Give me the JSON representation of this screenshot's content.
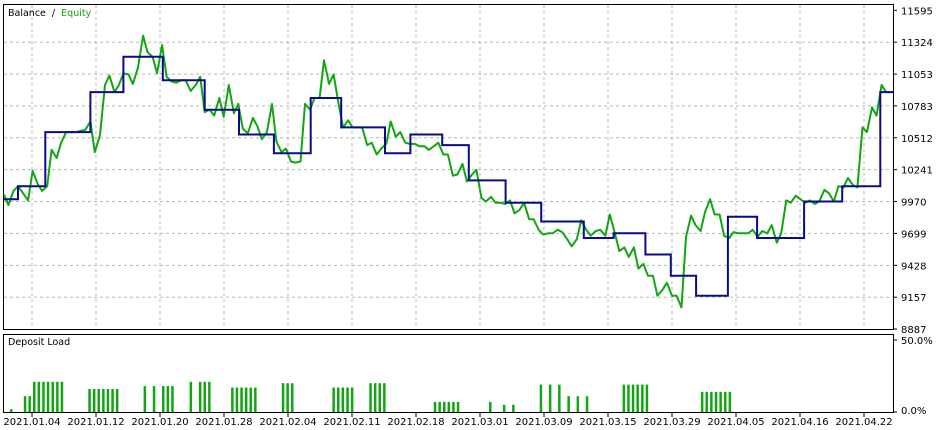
{
  "chart_data": [
    {
      "type": "line",
      "legend": {
        "items": [
          "Balance",
          "Equity"
        ],
        "separator": "/",
        "placement": "top-left"
      },
      "ylim": [
        8887,
        11640
      ],
      "y_ticks": [
        11595,
        11324,
        11053,
        10783,
        10512,
        10241,
        9970,
        9699,
        9428,
        9157,
        8887
      ],
      "grid": true,
      "colors": {
        "balance": "#0a0a8c",
        "equity": "#11a611",
        "grid": "#b8b8b8",
        "frame": "#000000"
      },
      "series": [
        {
          "name": "Balance",
          "steps": [
            [
              0.0,
              9990
            ],
            [
              2.2,
              10100
            ],
            [
              6.5,
              10560
            ],
            [
              13.6,
              10900
            ],
            [
              18.8,
              11200
            ],
            [
              25.0,
              11000
            ],
            [
              31.6,
              10750
            ],
            [
              37.0,
              10540
            ],
            [
              42.5,
              10380
            ],
            [
              48.3,
              10850
            ],
            [
              53.1,
              10600
            ],
            [
              60.0,
              10380
            ],
            [
              64.0,
              10540
            ],
            [
              69.0,
              10450
            ],
            [
              73.2,
              10150
            ],
            [
              79.0,
              9960
            ],
            [
              84.6,
              9800
            ],
            [
              91.3,
              9660
            ],
            [
              96.0,
              9700
            ],
            [
              101.0,
              9520
            ],
            [
              105.0,
              9340
            ],
            [
              109.0,
              9170
            ],
            [
              114.0,
              9840
            ],
            [
              118.6,
              9660
            ],
            [
              126.0,
              9970
            ],
            [
              132.0,
              10100
            ],
            [
              138.0,
              10900
            ],
            [
              140.0,
              10900
            ]
          ]
        },
        {
          "name": "Equity",
          "points": [
            [
              0,
              10030
            ],
            [
              0.7,
              9940
            ],
            [
              1.5,
              10060
            ],
            [
              2.2,
              10100
            ],
            [
              3,
              10040
            ],
            [
              3.8,
              9980
            ],
            [
              4.5,
              10230
            ],
            [
              5.3,
              10120
            ],
            [
              6,
              10060
            ],
            [
              6.8,
              10100
            ],
            [
              7.5,
              10410
            ],
            [
              8.3,
              10340
            ],
            [
              9,
              10470
            ],
            [
              9.8,
              10560
            ],
            [
              10.6,
              10560
            ],
            [
              11.3,
              10560
            ],
            [
              12.1,
              10570
            ],
            [
              12.8,
              10580
            ],
            [
              13.6,
              10650
            ],
            [
              14.3,
              10390
            ],
            [
              15.1,
              10530
            ],
            [
              15.9,
              10960
            ],
            [
              16.6,
              11040
            ],
            [
              17.4,
              10900
            ],
            [
              18.1,
              10960
            ],
            [
              18.8,
              11060
            ],
            [
              19.6,
              11050
            ],
            [
              20.3,
              10970
            ],
            [
              21.1,
              11110
            ],
            [
              21.9,
              11380
            ],
            [
              22.6,
              11240
            ],
            [
              23.4,
              11200
            ],
            [
              24.1,
              11060
            ],
            [
              24.9,
              11300
            ],
            [
              25.6,
              11030
            ],
            [
              26.4,
              10990
            ],
            [
              27.1,
              10980
            ],
            [
              27.9,
              11000
            ],
            [
              28.6,
              11000
            ],
            [
              29.4,
              10910
            ],
            [
              30.2,
              10960
            ],
            [
              30.9,
              11030
            ],
            [
              31.6,
              10730
            ],
            [
              32.4,
              10750
            ],
            [
              33.1,
              10700
            ],
            [
              33.9,
              10850
            ],
            [
              34.6,
              10690
            ],
            [
              35.4,
              10960
            ],
            [
              36.2,
              10720
            ],
            [
              36.9,
              10800
            ],
            [
              37.6,
              10590
            ],
            [
              38.4,
              10550
            ],
            [
              39.2,
              10680
            ],
            [
              39.9,
              10610
            ],
            [
              40.6,
              10500
            ],
            [
              41.4,
              10560
            ],
            [
              42.2,
              10800
            ],
            [
              42.9,
              10480
            ],
            [
              43.7,
              10390
            ],
            [
              44.4,
              10420
            ],
            [
              45.2,
              10310
            ],
            [
              45.9,
              10300
            ],
            [
              46.7,
              10310
            ],
            [
              47.4,
              10800
            ],
            [
              48.2,
              10750
            ],
            [
              48.9,
              10850
            ],
            [
              49.7,
              10850
            ],
            [
              50.4,
              11170
            ],
            [
              51.2,
              10970
            ],
            [
              51.9,
              11050
            ],
            [
              52.7,
              10800
            ],
            [
              53.4,
              10600
            ],
            [
              54.2,
              10660
            ],
            [
              54.9,
              10600
            ],
            [
              55.7,
              10600
            ],
            [
              56.4,
              10600
            ],
            [
              57.2,
              10450
            ],
            [
              57.9,
              10470
            ],
            [
              58.7,
              10370
            ],
            [
              59.4,
              10420
            ],
            [
              60.2,
              10460
            ],
            [
              60.9,
              10650
            ],
            [
              61.7,
              10520
            ],
            [
              62.4,
              10560
            ],
            [
              63.2,
              10470
            ],
            [
              63.9,
              10460
            ],
            [
              64.7,
              10460
            ],
            [
              65.4,
              10440
            ],
            [
              66.2,
              10440
            ],
            [
              66.9,
              10410
            ],
            [
              67.7,
              10440
            ],
            [
              68.4,
              10470
            ],
            [
              69.2,
              10370
            ],
            [
              69.9,
              10370
            ],
            [
              70.7,
              10190
            ],
            [
              71.4,
              10200
            ],
            [
              72.2,
              10290
            ],
            [
              72.9,
              10140
            ],
            [
              73.7,
              10200
            ],
            [
              74.4,
              10240
            ],
            [
              75.2,
              10000
            ],
            [
              75.9,
              9970
            ],
            [
              76.7,
              10010
            ],
            [
              77.4,
              9960
            ],
            [
              78.2,
              9960
            ],
            [
              78.9,
              9950
            ],
            [
              79.7,
              9980
            ],
            [
              80.4,
              9870
            ],
            [
              81.2,
              9900
            ],
            [
              81.9,
              9960
            ],
            [
              82.7,
              9820
            ],
            [
              83.4,
              9820
            ],
            [
              84.2,
              9730
            ],
            [
              84.9,
              9690
            ],
            [
              85.7,
              9700
            ],
            [
              86.4,
              9700
            ],
            [
              87.2,
              9730
            ],
            [
              87.9,
              9710
            ],
            [
              88.7,
              9650
            ],
            [
              89.4,
              9590
            ],
            [
              90.2,
              9650
            ],
            [
              90.9,
              9810
            ],
            [
              91.7,
              9730
            ],
            [
              92.4,
              9680
            ],
            [
              93.2,
              9720
            ],
            [
              93.9,
              9730
            ],
            [
              94.7,
              9680
            ],
            [
              95.4,
              9860
            ],
            [
              96.2,
              9700
            ],
            [
              96.9,
              9550
            ],
            [
              97.7,
              9580
            ],
            [
              98.4,
              9500
            ],
            [
              99.2,
              9580
            ],
            [
              99.9,
              9400
            ],
            [
              100.7,
              9440
            ],
            [
              101.4,
              9340
            ],
            [
              102.2,
              9340
            ],
            [
              102.9,
              9170
            ],
            [
              103.7,
              9220
            ],
            [
              104.4,
              9280
            ],
            [
              105.2,
              9170
            ],
            [
              105.9,
              9170
            ],
            [
              106.7,
              9070
            ],
            [
              107.4,
              9670
            ],
            [
              108.2,
              9850
            ],
            [
              108.9,
              9770
            ],
            [
              109.7,
              9720
            ],
            [
              110.4,
              9880
            ],
            [
              111.2,
              9990
            ],
            [
              111.9,
              9860
            ],
            [
              112.7,
              9860
            ],
            [
              113.4,
              9680
            ],
            [
              114.2,
              9660
            ],
            [
              114.9,
              9710
            ],
            [
              115.7,
              9700
            ],
            [
              116.4,
              9700
            ],
            [
              117.2,
              9700
            ],
            [
              117.9,
              9730
            ],
            [
              118.7,
              9670
            ],
            [
              119.4,
              9720
            ],
            [
              120.2,
              9700
            ],
            [
              120.9,
              9770
            ],
            [
              121.7,
              9620
            ],
            [
              122.4,
              9700
            ],
            [
              123.2,
              9980
            ],
            [
              123.9,
              9960
            ],
            [
              124.7,
              10020
            ],
            [
              125.4,
              9990
            ],
            [
              126.2,
              9960
            ],
            [
              126.9,
              9980
            ],
            [
              127.7,
              9950
            ],
            [
              128.4,
              9970
            ],
            [
              129.2,
              10070
            ],
            [
              129.9,
              10040
            ],
            [
              130.7,
              9970
            ],
            [
              131.4,
              10100
            ],
            [
              132.2,
              10090
            ],
            [
              132.9,
              10170
            ],
            [
              133.7,
              10110
            ],
            [
              134.4,
              10090
            ],
            [
              135.2,
              10600
            ],
            [
              135.9,
              10560
            ],
            [
              136.7,
              10770
            ],
            [
              137.4,
              10700
            ],
            [
              138.2,
              10960
            ],
            [
              138.9,
              10900
            ],
            [
              139.6,
              10900
            ]
          ]
        }
      ]
    },
    {
      "type": "bar",
      "title": "Deposit Load",
      "ylim": [
        0,
        50
      ],
      "y_ticks": [
        "50.0%",
        "0.0%"
      ],
      "x_ticks": [
        "2021.01.04",
        "2021.01.12",
        "2021.01.20",
        "2021.01.28",
        "2021.02.04",
        "2021.02.11",
        "2021.02.18",
        "2021.03.01",
        "2021.03.09",
        "2021.03.15",
        "2021.03.29",
        "2021.04.05",
        "2021.04.16",
        "2021.04.22"
      ],
      "values": [
        2,
        0,
        0,
        11,
        11,
        21,
        21,
        21,
        21,
        21,
        21,
        21,
        0,
        0,
        0,
        0,
        0,
        16,
        16,
        16,
        16,
        16,
        16,
        16,
        0,
        0,
        0,
        0,
        0,
        18,
        0,
        18,
        0,
        18,
        18,
        18,
        0,
        0,
        0,
        21,
        0,
        21,
        21,
        21,
        0,
        0,
        0,
        0,
        17,
        17,
        17,
        17,
        17,
        17,
        0,
        0,
        0,
        0,
        0,
        20,
        20,
        20,
        0,
        0,
        0,
        0,
        0,
        0,
        0,
        0,
        17,
        17,
        17,
        17,
        17,
        0,
        0,
        0,
        20,
        20,
        20,
        20,
        0,
        0,
        0,
        0,
        0,
        0,
        0,
        0,
        0,
        0,
        7,
        7,
        7,
        7,
        7,
        7,
        0,
        0,
        0,
        0,
        0,
        0,
        7,
        0,
        0,
        5,
        0,
        5,
        0,
        0,
        0,
        0,
        0,
        19,
        0,
        19,
        0,
        19,
        0,
        11,
        0,
        11,
        0,
        11,
        0,
        0,
        0,
        0,
        0,
        0,
        0,
        19,
        19,
        19,
        19,
        19,
        19,
        0,
        0,
        0,
        0,
        0,
        0,
        0,
        0,
        0,
        0,
        0,
        14,
        14,
        14,
        14,
        14,
        14,
        14,
        0,
        0,
        0,
        0,
        0,
        0,
        0,
        0,
        0,
        0,
        0,
        0,
        0,
        0,
        0,
        0,
        0,
        0,
        0,
        0,
        0,
        0,
        0,
        0,
        0,
        0,
        0,
        0,
        0,
        0,
        0,
        0,
        0,
        0,
        0,
        0
      ]
    }
  ]
}
